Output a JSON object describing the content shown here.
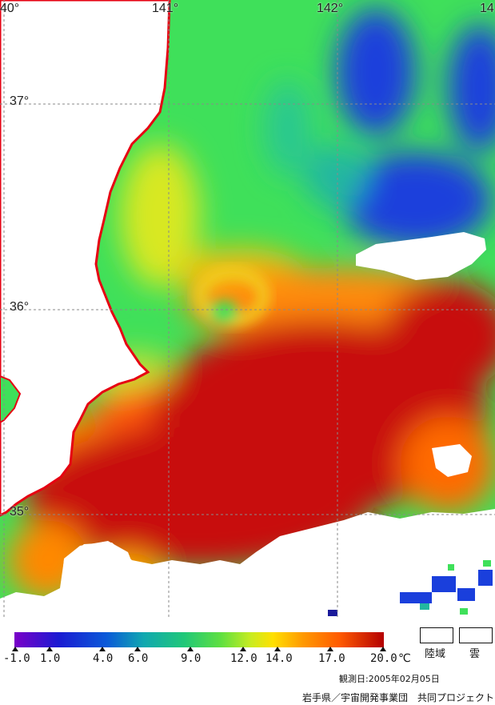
{
  "map": {
    "longitude_labels": [
      "40°",
      "141°",
      "142°",
      "14"
    ],
    "latitude_labels": [
      "37°",
      "36°",
      "35°"
    ],
    "colors": {
      "land": "#ffffff",
      "coastline": "#e60012",
      "cold_water": "#1a3fdc",
      "cool_water": "#22b7a0",
      "mid_water": "#3fe05a",
      "warm_water": "#ffb000",
      "hot_water": "#c81010"
    }
  },
  "legend": {
    "tick_labels": [
      "-1.0",
      "1.0",
      "4.0",
      "6.0",
      "9.0",
      "12.0",
      "14.0",
      "17.0",
      "20.0"
    ],
    "unit": "℃",
    "key_land": "陸域",
    "key_cloud": "雲"
  },
  "footer": {
    "observation_date": "観測日:2005年02月05日",
    "credit": "岩手県／宇宙開発事業団　共同プロジェクト"
  }
}
